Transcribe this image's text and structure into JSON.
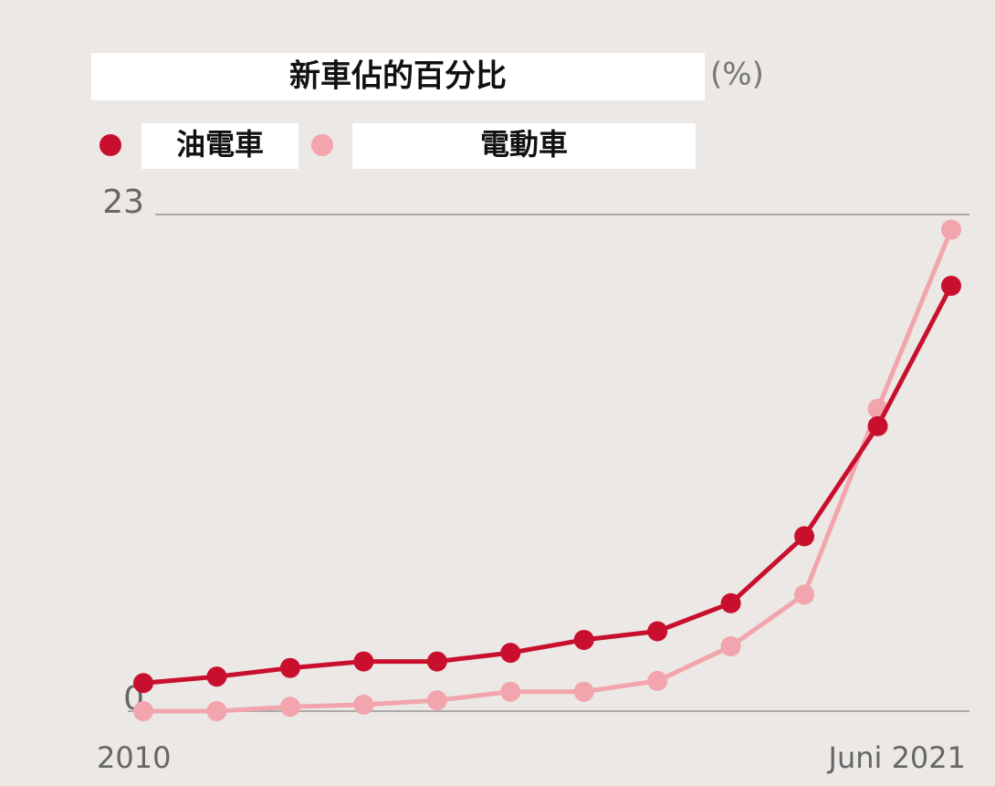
{
  "chart_data": {
    "type": "line",
    "title": "新車佔的百分比",
    "y_label": "(%)",
    "categories": [
      "2010",
      null,
      null,
      null,
      null,
      null,
      null,
      null,
      null,
      null,
      null,
      "Juni 2021"
    ],
    "series": [
      {
        "name": "油電車",
        "color": "#c8102e",
        "values": [
          1.3,
          1.6,
          2.0,
          2.3,
          2.3,
          2.7,
          3.3,
          3.7,
          5.0,
          8.1,
          13.2,
          19.7
        ]
      },
      {
        "name": "電動車",
        "color": "#f2a5ac",
        "values": [
          0.0,
          0.0,
          0.2,
          0.3,
          0.5,
          0.9,
          0.9,
          1.4,
          3.0,
          5.4,
          14.0,
          22.3
        ]
      }
    ],
    "ylim": [
      0,
      23
    ],
    "yticks": [
      0,
      23
    ],
    "grid": true
  }
}
